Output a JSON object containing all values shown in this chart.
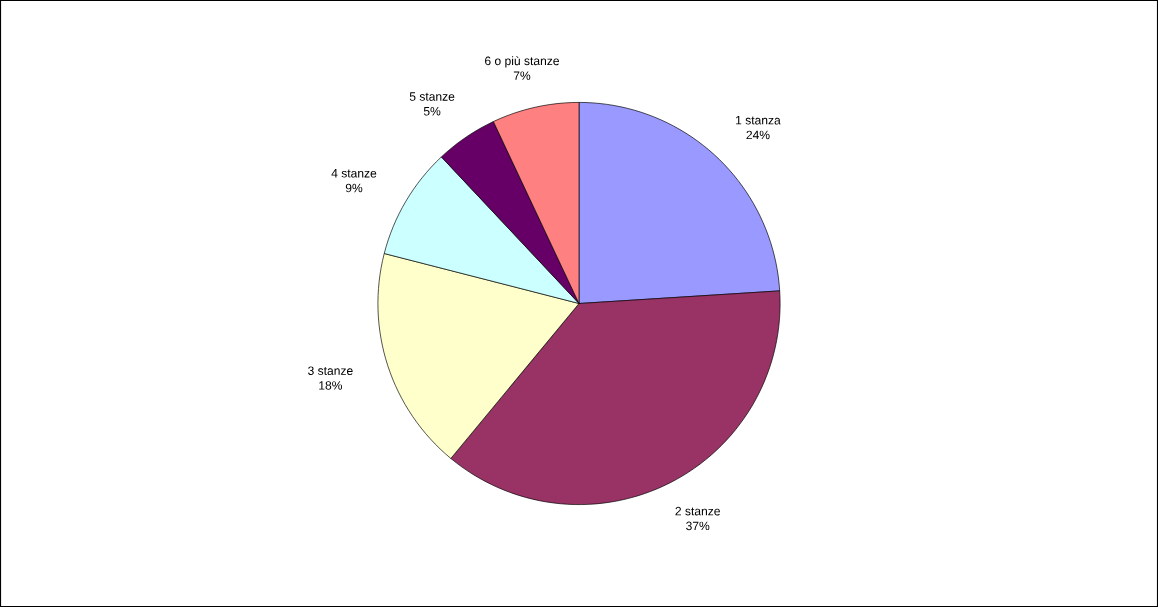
{
  "chart_data": {
    "type": "pie",
    "categories": [
      "1 stanza",
      "2 stanze",
      "3 stanze",
      "4 stanze",
      "5 stanze",
      "6 o più stanze"
    ],
    "values": [
      24,
      37,
      18,
      9,
      5,
      7
    ],
    "value_labels": [
      "24%",
      "37%",
      "18%",
      "9%",
      "5%",
      "7%"
    ],
    "colors": [
      "#9999ff",
      "#993366",
      "#ffffcc",
      "#ccffff",
      "#660066",
      "#ff8080"
    ]
  }
}
